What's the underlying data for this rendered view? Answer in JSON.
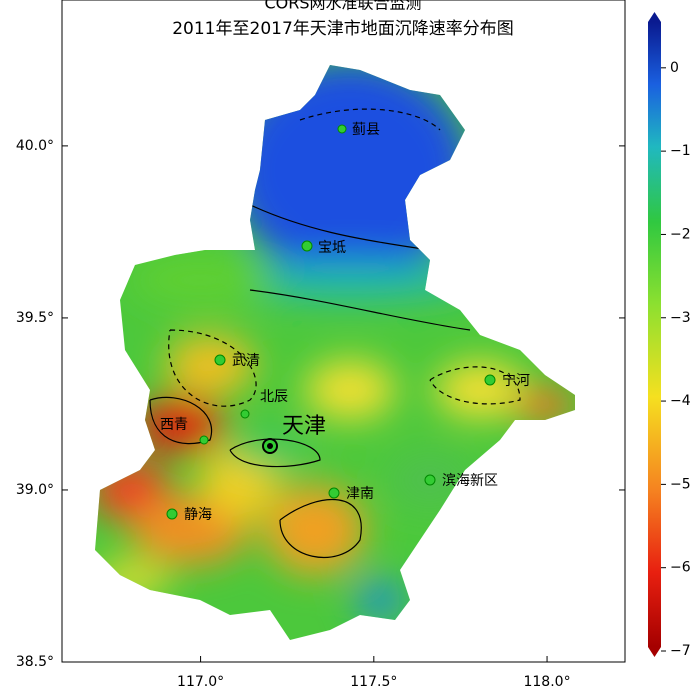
{
  "map": {
    "title": "CORS网水准联合监测",
    "subtitle": "2011年至2017年天津市地面沉降速率分布图",
    "xlim": [
      116.6,
      118.225
    ],
    "xticks": [
      {
        "value": 117.0,
        "label": "117.0°"
      },
      {
        "value": 117.5,
        "label": "117.5°"
      },
      {
        "value": 118.0,
        "label": "118.0°"
      }
    ],
    "ylim": [
      38.5,
      40.424
    ],
    "yticks": [
      {
        "value": 38.5,
        "label": "38.5°"
      },
      {
        "value": 39.0,
        "label": "39.0°"
      },
      {
        "value": 39.5,
        "label": "39.5°"
      },
      {
        "value": 40.0,
        "label": "40.0°"
      }
    ],
    "colorbar": {
      "clim": [
        -7,
        0.55
      ],
      "ticks": [
        0,
        {
          "value": -1,
          "label": "−1"
        },
        {
          "value": -2,
          "label": "−2"
        },
        {
          "value": -3,
          "label": "−3"
        },
        {
          "value": -4,
          "label": "−4"
        },
        {
          "value": -5,
          "label": "−5"
        },
        {
          "value": -6,
          "label": "−6"
        },
        {
          "value": -7,
          "label": "−7"
        }
      ]
    },
    "places": [
      "蓟县",
      "宝坻",
      "武清",
      "北辰",
      "西青",
      "天津",
      "宁河",
      "滨海新区",
      "津南",
      "静海"
    ]
  }
}
